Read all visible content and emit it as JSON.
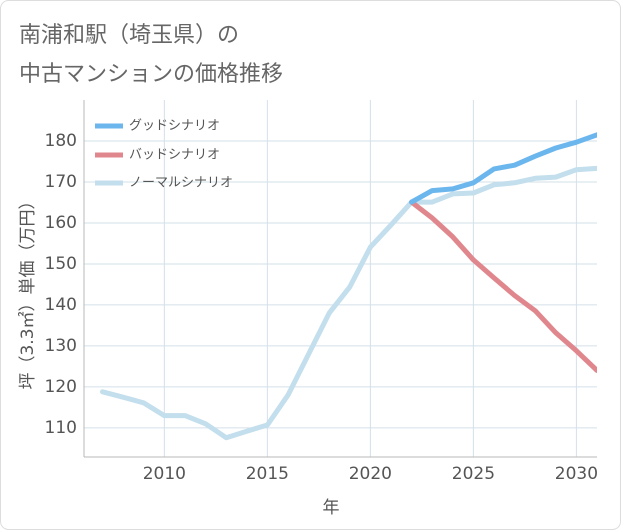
{
  "chart_data": {
    "type": "line",
    "title_lines": [
      "南浦和駅（埼玉県）の",
      "中古マンションの価格推移"
    ],
    "xlabel": "年",
    "ylabel": "坪（3.3㎡）単価（万円）",
    "xlim": [
      2006.1,
      2031
    ],
    "ylim": [
      102.9,
      190
    ],
    "xticks": [
      2010,
      2015,
      2020,
      2025,
      2030
    ],
    "yticks": [
      110,
      120,
      130,
      140,
      150,
      160,
      170,
      180
    ],
    "grid": true,
    "legend_position": "top-left",
    "series": [
      {
        "name": "グッドシナリオ",
        "color": "#6cb6ee",
        "x": [
          2022,
          2023,
          2024,
          2025,
          2026,
          2027,
          2028,
          2029,
          2030,
          2031
        ],
        "y": [
          165.1,
          167.9,
          168.3,
          169.8,
          173.2,
          174.1,
          176.3,
          178.3,
          179.7,
          181.5
        ]
      },
      {
        "name": "バッドシナリオ",
        "color": "#e0878e",
        "x": [
          2022,
          2023,
          2024,
          2025,
          2026,
          2027,
          2028,
          2029,
          2030,
          2031
        ],
        "y": [
          165.1,
          161.2,
          156.6,
          151.0,
          146.6,
          142.3,
          138.6,
          133.2,
          128.8,
          124.0
        ]
      },
      {
        "name": "ノーマルシナリオ",
        "color": "#c3deec",
        "x": [
          2007,
          2008,
          2009,
          2010,
          2011,
          2012,
          2013,
          2014,
          2015,
          2016,
          2017,
          2018,
          2019,
          2020,
          2021,
          2022,
          2023,
          2024,
          2025,
          2026,
          2027,
          2028,
          2029,
          2030,
          2031
        ],
        "y": [
          118.8,
          117.5,
          116.1,
          113.0,
          113.0,
          111.0,
          107.6,
          109.2,
          110.7,
          118.0,
          128.0,
          138.0,
          144.4,
          154.1,
          159.5,
          165.1,
          165.1,
          167.1,
          167.3,
          169.3,
          169.8,
          170.9,
          171.2,
          173.0,
          173.3
        ]
      }
    ]
  },
  "colors": {
    "title": "#666666",
    "text": "#555555",
    "grid": "#d3e0ea",
    "axis": "#b8b8b8",
    "frame": "#dddddd",
    "background": "#ffffff"
  }
}
